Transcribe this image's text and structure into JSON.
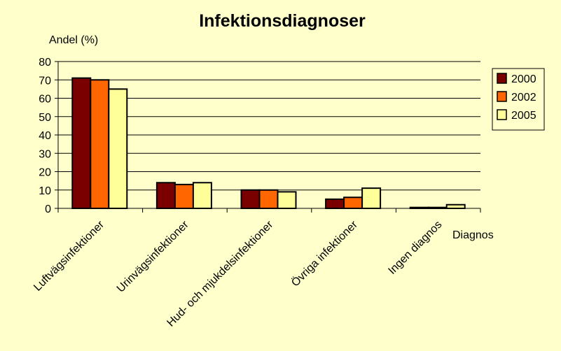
{
  "chart_data": {
    "type": "bar",
    "title": "Infektionsdiagnoser",
    "ylabel": "Andel (%)",
    "xlabel": "Diagnos",
    "ylim": [
      0,
      80
    ],
    "yticks": [
      0,
      10,
      20,
      30,
      40,
      50,
      60,
      70,
      80
    ],
    "grid": true,
    "legend_position": "right",
    "categories": [
      "Luftvägsinfektioner",
      "Urinvägsinfektioner",
      "Hud- och mjukdelsinfektioner",
      "Övriga infektioner",
      "Ingen diagnos"
    ],
    "series": [
      {
        "name": "2000",
        "color": "#7a0000",
        "values": [
          71,
          14,
          10,
          5,
          0.5
        ]
      },
      {
        "name": "2002",
        "color": "#ff6600",
        "values": [
          70,
          13,
          10,
          6,
          0.5
        ]
      },
      {
        "name": "2005",
        "color": "#ffff99",
        "values": [
          65,
          14,
          9,
          11,
          2
        ]
      }
    ],
    "colors": {
      "background": "#ffffcc",
      "plot_background": "#ffffcc",
      "bar_outline": "#000000",
      "gridline": "#000000"
    }
  }
}
